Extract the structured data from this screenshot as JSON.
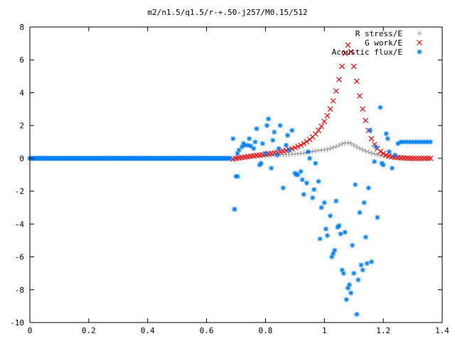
{
  "chart_data": {
    "type": "scatter",
    "title": "m2/n1.5/q1.5/r-+.50-j257/M0.15/512",
    "xlabel": "",
    "ylabel": "",
    "xlim": [
      0,
      1.4
    ],
    "ylim": [
      -10,
      8
    ],
    "xticks": [
      "0",
      "0.2",
      "0.4",
      "0.6",
      "0.8",
      "1",
      "1.2",
      "1.4"
    ],
    "yticks": [
      "-10",
      "-8",
      "-6",
      "-4",
      "-2",
      "0",
      "2",
      "4",
      "6",
      "8"
    ],
    "legend_position": "top-right",
    "grid": false,
    "series": [
      {
        "name": "R stress/E",
        "marker": "plus",
        "color": "#a0a0a0",
        "x": [
          0.69,
          0.7,
          0.71,
          0.72,
          0.73,
          0.74,
          0.75,
          0.76,
          0.77,
          0.78,
          0.79,
          0.8,
          0.81,
          0.82,
          0.83,
          0.84,
          0.85,
          0.86,
          0.87,
          0.88,
          0.89,
          0.9,
          0.91,
          0.92,
          0.93,
          0.94,
          0.95,
          0.96,
          0.97,
          0.98,
          0.99,
          1.0,
          1.01,
          1.02,
          1.03,
          1.04,
          1.05,
          1.06,
          1.07,
          1.08,
          1.09,
          1.1,
          1.11,
          1.12,
          1.13,
          1.14,
          1.15,
          1.16,
          1.17,
          1.18,
          1.19,
          1.2,
          1.21,
          1.22,
          1.23,
          1.24,
          1.25,
          1.26,
          1.27,
          1.28,
          1.29,
          1.3,
          1.31,
          1.32,
          1.33,
          1.34,
          1.35,
          1.36
        ],
        "y": [
          0.0,
          0.02,
          0.04,
          0.06,
          0.08,
          0.1,
          0.12,
          0.14,
          0.15,
          0.16,
          0.17,
          0.18,
          0.19,
          0.2,
          0.2,
          0.21,
          0.22,
          0.22,
          0.23,
          0.24,
          0.25,
          0.26,
          0.28,
          0.3,
          0.32,
          0.35,
          0.38,
          0.42,
          0.45,
          0.48,
          0.5,
          0.52,
          0.55,
          0.6,
          0.66,
          0.72,
          0.8,
          0.88,
          0.94,
          0.96,
          0.9,
          0.8,
          0.7,
          0.6,
          0.52,
          0.45,
          0.38,
          0.32,
          0.27,
          0.22,
          0.18,
          0.14,
          0.11,
          0.08,
          0.06,
          0.05,
          0.04,
          0.03,
          0.03,
          0.02,
          0.02,
          0.01,
          0.01,
          0.01,
          0.01,
          0.0,
          0.0,
          0.0
        ]
      },
      {
        "name": "G work/E",
        "marker": "cross",
        "color": "#ff0000",
        "x": [
          0.69,
          0.7,
          0.71,
          0.72,
          0.73,
          0.74,
          0.75,
          0.76,
          0.77,
          0.78,
          0.79,
          0.8,
          0.81,
          0.82,
          0.83,
          0.84,
          0.85,
          0.86,
          0.87,
          0.88,
          0.89,
          0.9,
          0.91,
          0.92,
          0.93,
          0.94,
          0.95,
          0.96,
          0.97,
          0.98,
          0.99,
          1.0,
          1.01,
          1.02,
          1.03,
          1.04,
          1.05,
          1.06,
          1.07,
          1.08,
          1.09,
          1.1,
          1.11,
          1.12,
          1.13,
          1.14,
          1.15,
          1.16,
          1.17,
          1.18,
          1.19,
          1.2,
          1.21,
          1.22,
          1.23,
          1.24,
          1.25,
          1.26,
          1.27,
          1.28,
          1.29,
          1.3,
          1.31,
          1.32,
          1.33,
          1.34,
          1.35,
          1.36
        ],
        "y": [
          -0.05,
          0.0,
          0.02,
          0.05,
          0.08,
          0.1,
          0.13,
          0.15,
          0.18,
          0.2,
          0.22,
          0.25,
          0.28,
          0.3,
          0.33,
          0.36,
          0.4,
          0.44,
          0.48,
          0.53,
          0.58,
          0.65,
          0.72,
          0.8,
          0.9,
          1.02,
          1.15,
          1.3,
          1.48,
          1.7,
          1.95,
          2.25,
          2.6,
          3.0,
          3.5,
          4.1,
          4.8,
          5.6,
          6.4,
          6.9,
          6.5,
          5.6,
          4.7,
          3.8,
          3.0,
          2.3,
          1.7,
          1.2,
          0.85,
          0.6,
          0.42,
          0.3,
          0.2,
          0.14,
          0.1,
          0.07,
          0.05,
          0.03,
          0.02,
          0.01,
          0.0,
          0.0,
          -0.01,
          -0.01,
          -0.01,
          0.0,
          0.0,
          0.0
        ]
      },
      {
        "name": "Acoustic flux/E",
        "marker": "star",
        "color": "#0080ff",
        "x": [
          0.0,
          0.02,
          0.04,
          0.06,
          0.08,
          0.1,
          0.12,
          0.14,
          0.16,
          0.18,
          0.2,
          0.22,
          0.24,
          0.26,
          0.28,
          0.3,
          0.32,
          0.34,
          0.36,
          0.38,
          0.4,
          0.42,
          0.44,
          0.46,
          0.48,
          0.5,
          0.52,
          0.54,
          0.56,
          0.58,
          0.6,
          0.62,
          0.64,
          0.66,
          0.68,
          0.69,
          0.695,
          0.7,
          0.705,
          0.71,
          0.72,
          0.73,
          0.74,
          0.75,
          0.76,
          0.77,
          0.78,
          0.79,
          0.8,
          0.81,
          0.82,
          0.83,
          0.84,
          0.85,
          0.86,
          0.87,
          0.88,
          0.89,
          0.9,
          0.91,
          0.92,
          0.93,
          0.94,
          0.95,
          0.96,
          0.97,
          0.98,
          0.99,
          1.0,
          1.01,
          1.02,
          1.03,
          1.04,
          1.05,
          1.06,
          1.07,
          1.08,
          1.09,
          1.1,
          1.11,
          1.12,
          1.13,
          1.14,
          1.15,
          1.16,
          1.17,
          1.18,
          1.19,
          1.2,
          1.21,
          1.22,
          1.23,
          1.24,
          1.25,
          1.26,
          1.27,
          1.28,
          1.29,
          1.3,
          1.31,
          1.32,
          1.33,
          1.34,
          1.35,
          1.36,
          0.695,
          0.705,
          0.725,
          0.745,
          0.765,
          0.785,
          0.805,
          0.825,
          0.845,
          0.875,
          0.905,
          0.925,
          0.945,
          0.965,
          0.985,
          1.005,
          1.025,
          1.035,
          1.045,
          1.055,
          1.065,
          1.075,
          1.085,
          1.095,
          1.105,
          1.115,
          1.125,
          1.135,
          1.145,
          1.155,
          1.175,
          1.195,
          1.215
        ],
        "y": [
          0.0,
          0.0,
          0.0,
          0.0,
          0.0,
          0.0,
          0.0,
          0.0,
          0.0,
          0.0,
          0.0,
          0.0,
          0.0,
          0.0,
          0.0,
          0.0,
          0.0,
          0.0,
          0.0,
          0.0,
          0.0,
          0.0,
          0.0,
          0.0,
          0.0,
          0.0,
          0.0,
          0.0,
          0.0,
          0.0,
          0.0,
          0.0,
          0.0,
          0.0,
          0.0,
          1.2,
          -3.1,
          -1.1,
          0.3,
          0.5,
          0.7,
          0.8,
          0.8,
          0.75,
          0.6,
          1.8,
          -0.4,
          0.9,
          0.3,
          2.4,
          -0.6,
          1.6,
          0.2,
          2.0,
          -1.8,
          0.8,
          0.5,
          1.7,
          -0.9,
          -1.0,
          -0.8,
          -2.2,
          -1.5,
          0.0,
          -2.4,
          -0.3,
          -1.4,
          -3.0,
          -2.7,
          -4.7,
          -3.5,
          -5.8,
          -2.6,
          -4.1,
          -6.8,
          -4.5,
          -7.9,
          -8.2,
          -7.0,
          -9.5,
          -3.3,
          -6.8,
          -4.8,
          -1.8,
          -6.3,
          -0.2,
          -3.6,
          3.1,
          -0.4,
          1.5,
          0.4,
          -0.6,
          0.2,
          0.9,
          1.0,
          1.0,
          1.0,
          1.0,
          1.0,
          1.0,
          1.0,
          1.0,
          1.0,
          1.0,
          1.0,
          -3.1,
          -1.1,
          0.9,
          1.2,
          1.0,
          -0.3,
          2.0,
          1.1,
          0.6,
          1.4,
          -1.0,
          -1.3,
          0.4,
          -1.9,
          -4.9,
          -4.3,
          -6.0,
          -5.6,
          -4.2,
          -4.6,
          -7.0,
          -8.6,
          -7.7,
          -5.3,
          -1.6,
          -7.4,
          -6.5,
          -2.7,
          -6.4,
          1.7,
          0.7,
          -0.3,
          1.2
        ]
      }
    ]
  }
}
